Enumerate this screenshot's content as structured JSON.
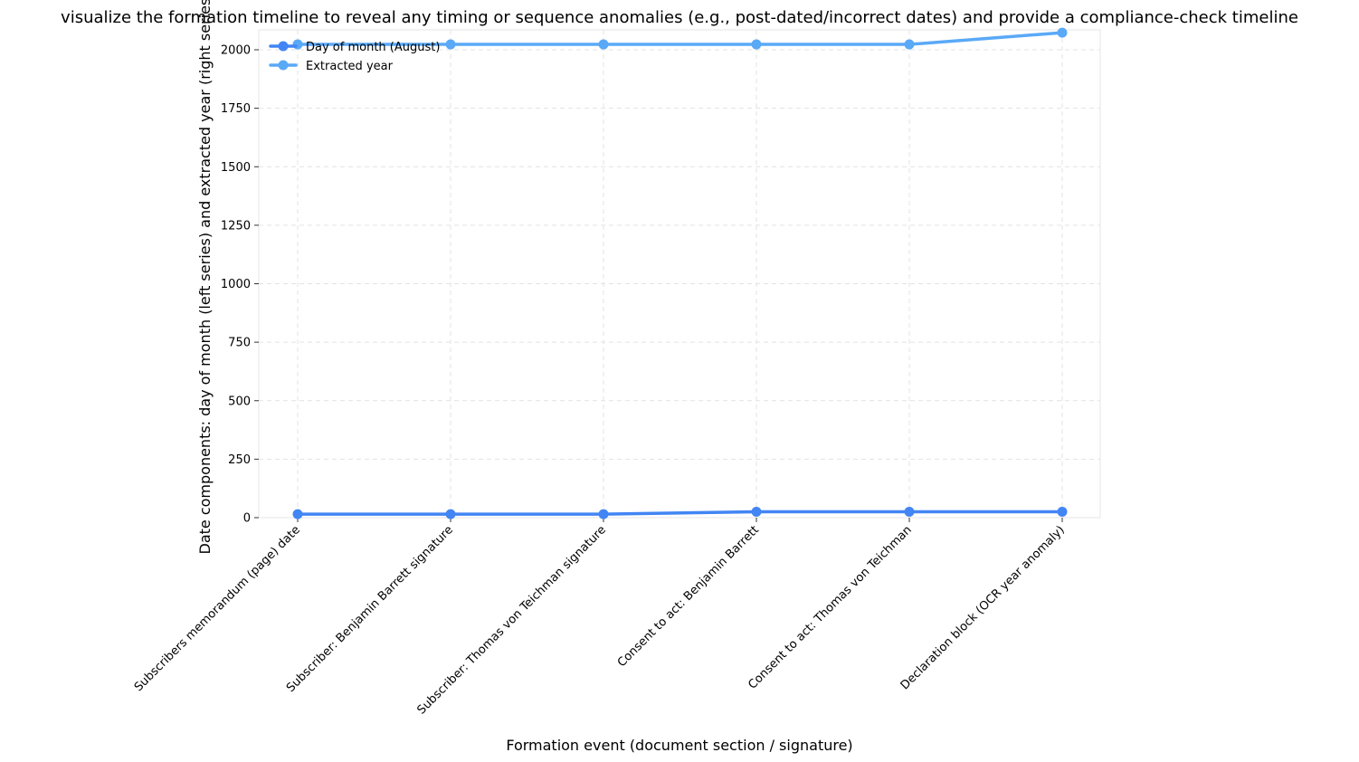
{
  "chart_data": {
    "type": "line",
    "title": "visualize the formation timeline to reveal any timing or sequence anomalies (e.g., post-dated/incorrect dates) and provide a compliance-check timeline",
    "xlabel": "Formation event (document section / signature)",
    "ylabel": "Date components: day of month (left series) and extracted year (right series)",
    "categories": [
      "Subscribers memorandum (page) date",
      "Subscriber: Benjamin Barrett signature",
      "Subscriber: Thomas von Teichman signature",
      "Consent to act: Benjamin Barrett",
      "Consent to act: Thomas von Teichman",
      "Declaration block (OCR year anomaly)"
    ],
    "series": [
      {
        "name": "Day of month (August)",
        "values": [
          15,
          15,
          15,
          25,
          25,
          25
        ],
        "color": "#4285f4"
      },
      {
        "name": "Extracted year",
        "values": [
          2023,
          2023,
          2023,
          2023,
          2023,
          2073
        ],
        "color": "#5aa9f7"
      }
    ],
    "ylim": [
      0,
      2083
    ],
    "yticks": [
      0,
      250,
      500,
      750,
      1000,
      1250,
      1500,
      1750,
      2000
    ],
    "grid": true,
    "legend_position": "top-left"
  }
}
